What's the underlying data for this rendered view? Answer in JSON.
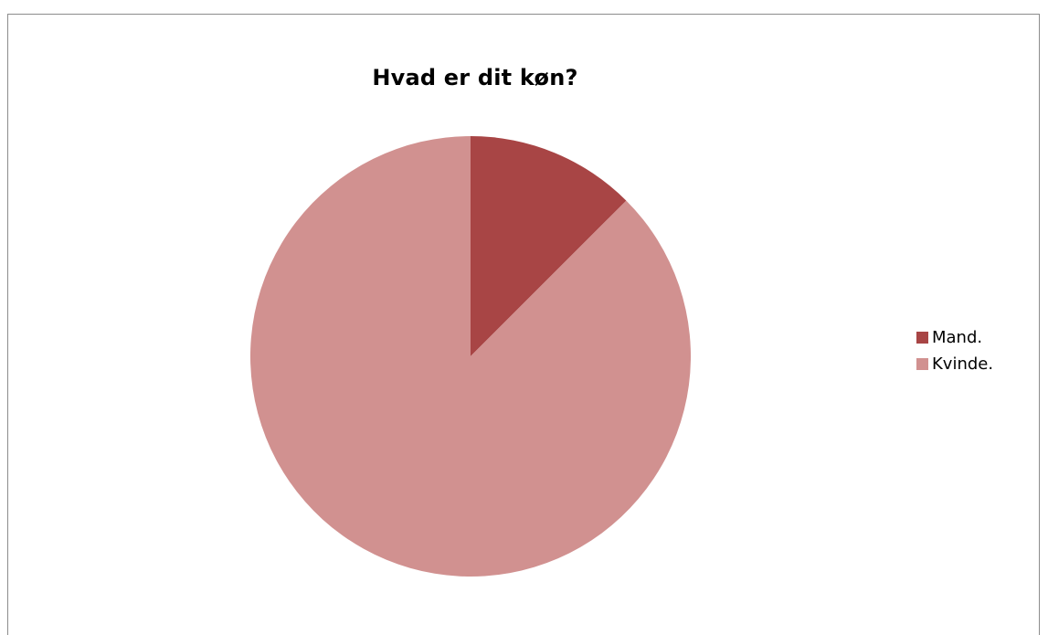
{
  "chart_data": {
    "type": "pie",
    "title": "Hvad er dit køn?",
    "categories": [
      "Mand.",
      "Kvinde."
    ],
    "values": [
      12.5,
      87.5
    ],
    "colors": [
      "#a84545",
      "#d19190"
    ],
    "start_angle_deg": 0,
    "direction": "clockwise",
    "legend_position": "right"
  }
}
